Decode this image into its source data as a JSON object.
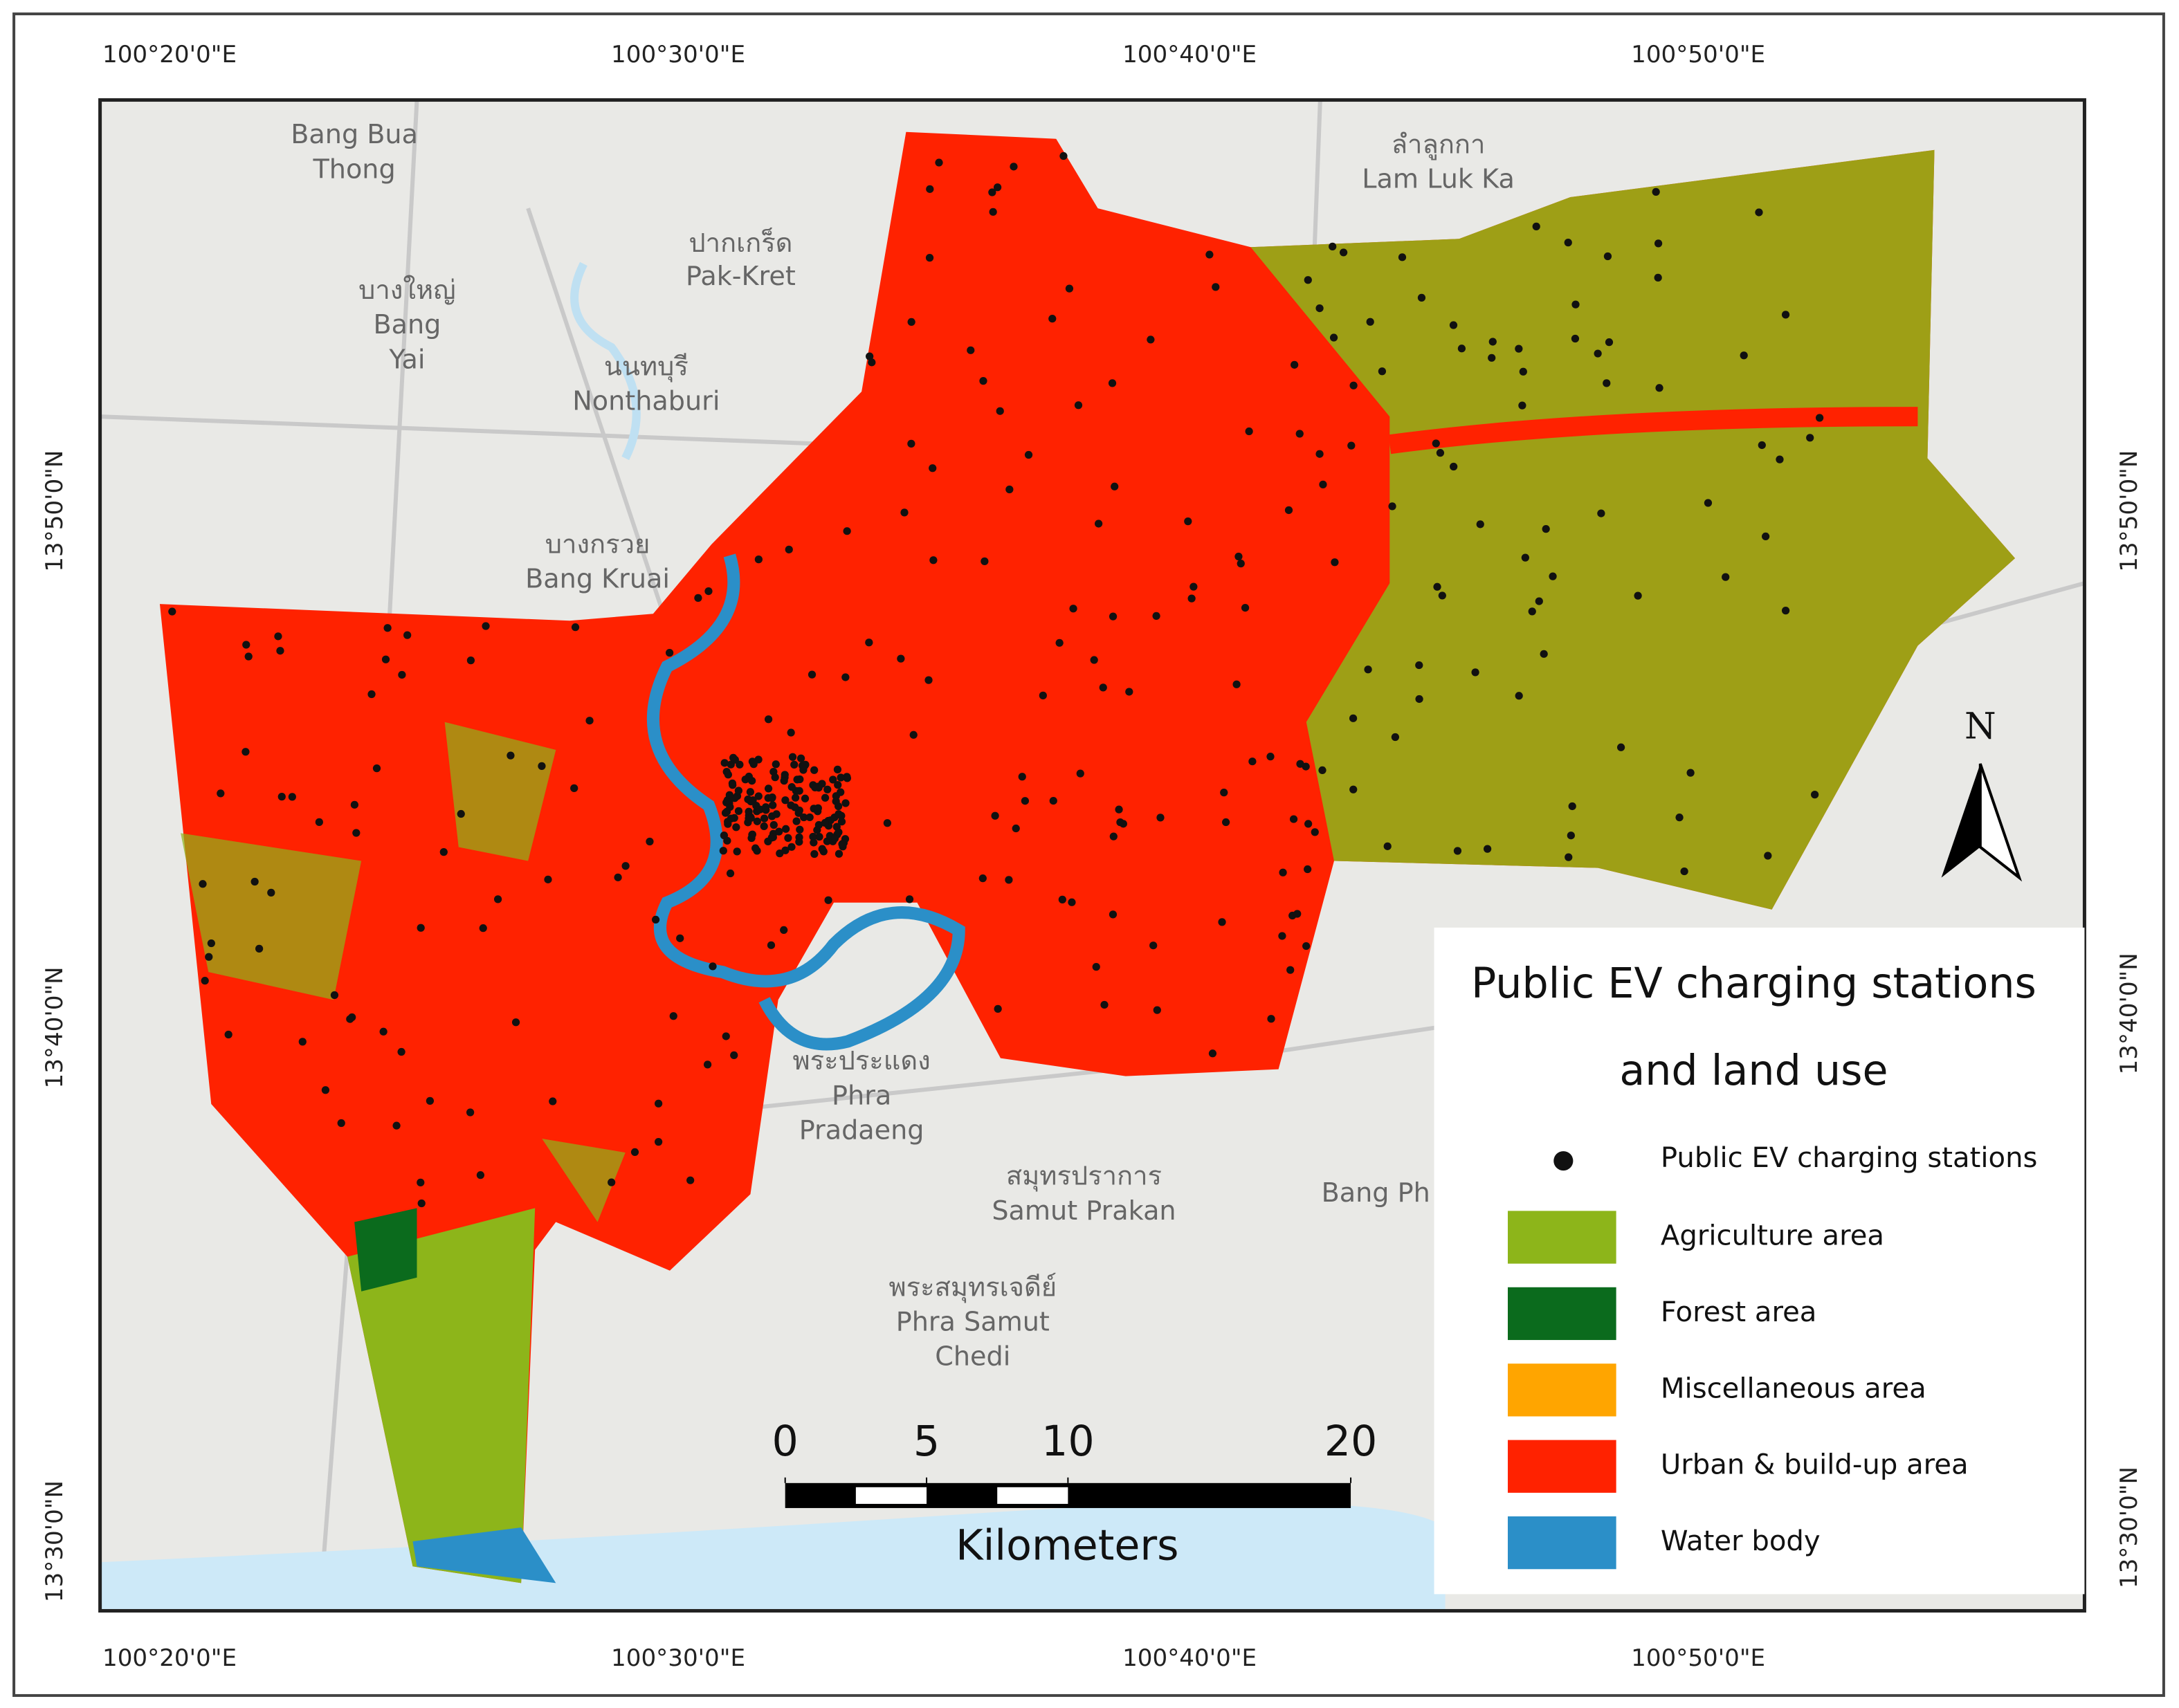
{
  "map": {
    "legend": {
      "title_lines": [
        "Public EV charging stations",
        "and land use"
      ],
      "items": [
        {
          "label": "Public EV charging stations",
          "color": "#111111"
        },
        {
          "label": "Agriculture area",
          "color": "#8db51a"
        },
        {
          "label": "Forest area",
          "color": "#0b6b1d"
        },
        {
          "label": "Miscellaneous area",
          "color": "#ffa500"
        },
        {
          "label": "Urban & build-up area",
          "color": "#ff2200"
        },
        {
          "label": "Water body",
          "color": "#2b8fc8"
        }
      ]
    },
    "top_labels": [
      "100°20'0\"E",
      "100°30'0\"E",
      "100°40'0\"E",
      "100°50'0\"E"
    ],
    "bottom_labels": [
      "100°20'0\"E",
      "100°30'0\"E",
      "100°40'0\"E",
      "100°50'0\"E"
    ],
    "left_labels": [
      "13°50'0\"N",
      "13°40'0\"N",
      "13°30'0\"N"
    ],
    "right_labels": [
      "13°50'0\"N",
      "13°40'0\"N",
      "13°30'0\"N"
    ],
    "scale_bar": {
      "ticks": [
        0,
        5,
        10,
        20
      ],
      "unit": "Kilometers"
    },
    "north": "N",
    "places": [
      "Bang Bua",
      "Thong",
      "ลำลูกกา",
      "Lam Luk Ka",
      "ปากเกร็ด",
      "Pak-Kret",
      "บางใหญ่",
      "Bang",
      "Yai",
      "นนทบุรี",
      "Nonthaburi",
      "บางกรวย",
      "Bang Kruai",
      "พระประแดง",
      "Phra",
      "Pradaeng",
      "สมุทรปราการ",
      "Samut Prakan",
      "Bang Ph",
      "พระสมุทรเจดีย์",
      "Phra Samut",
      "Chedi"
    ]
  }
}
